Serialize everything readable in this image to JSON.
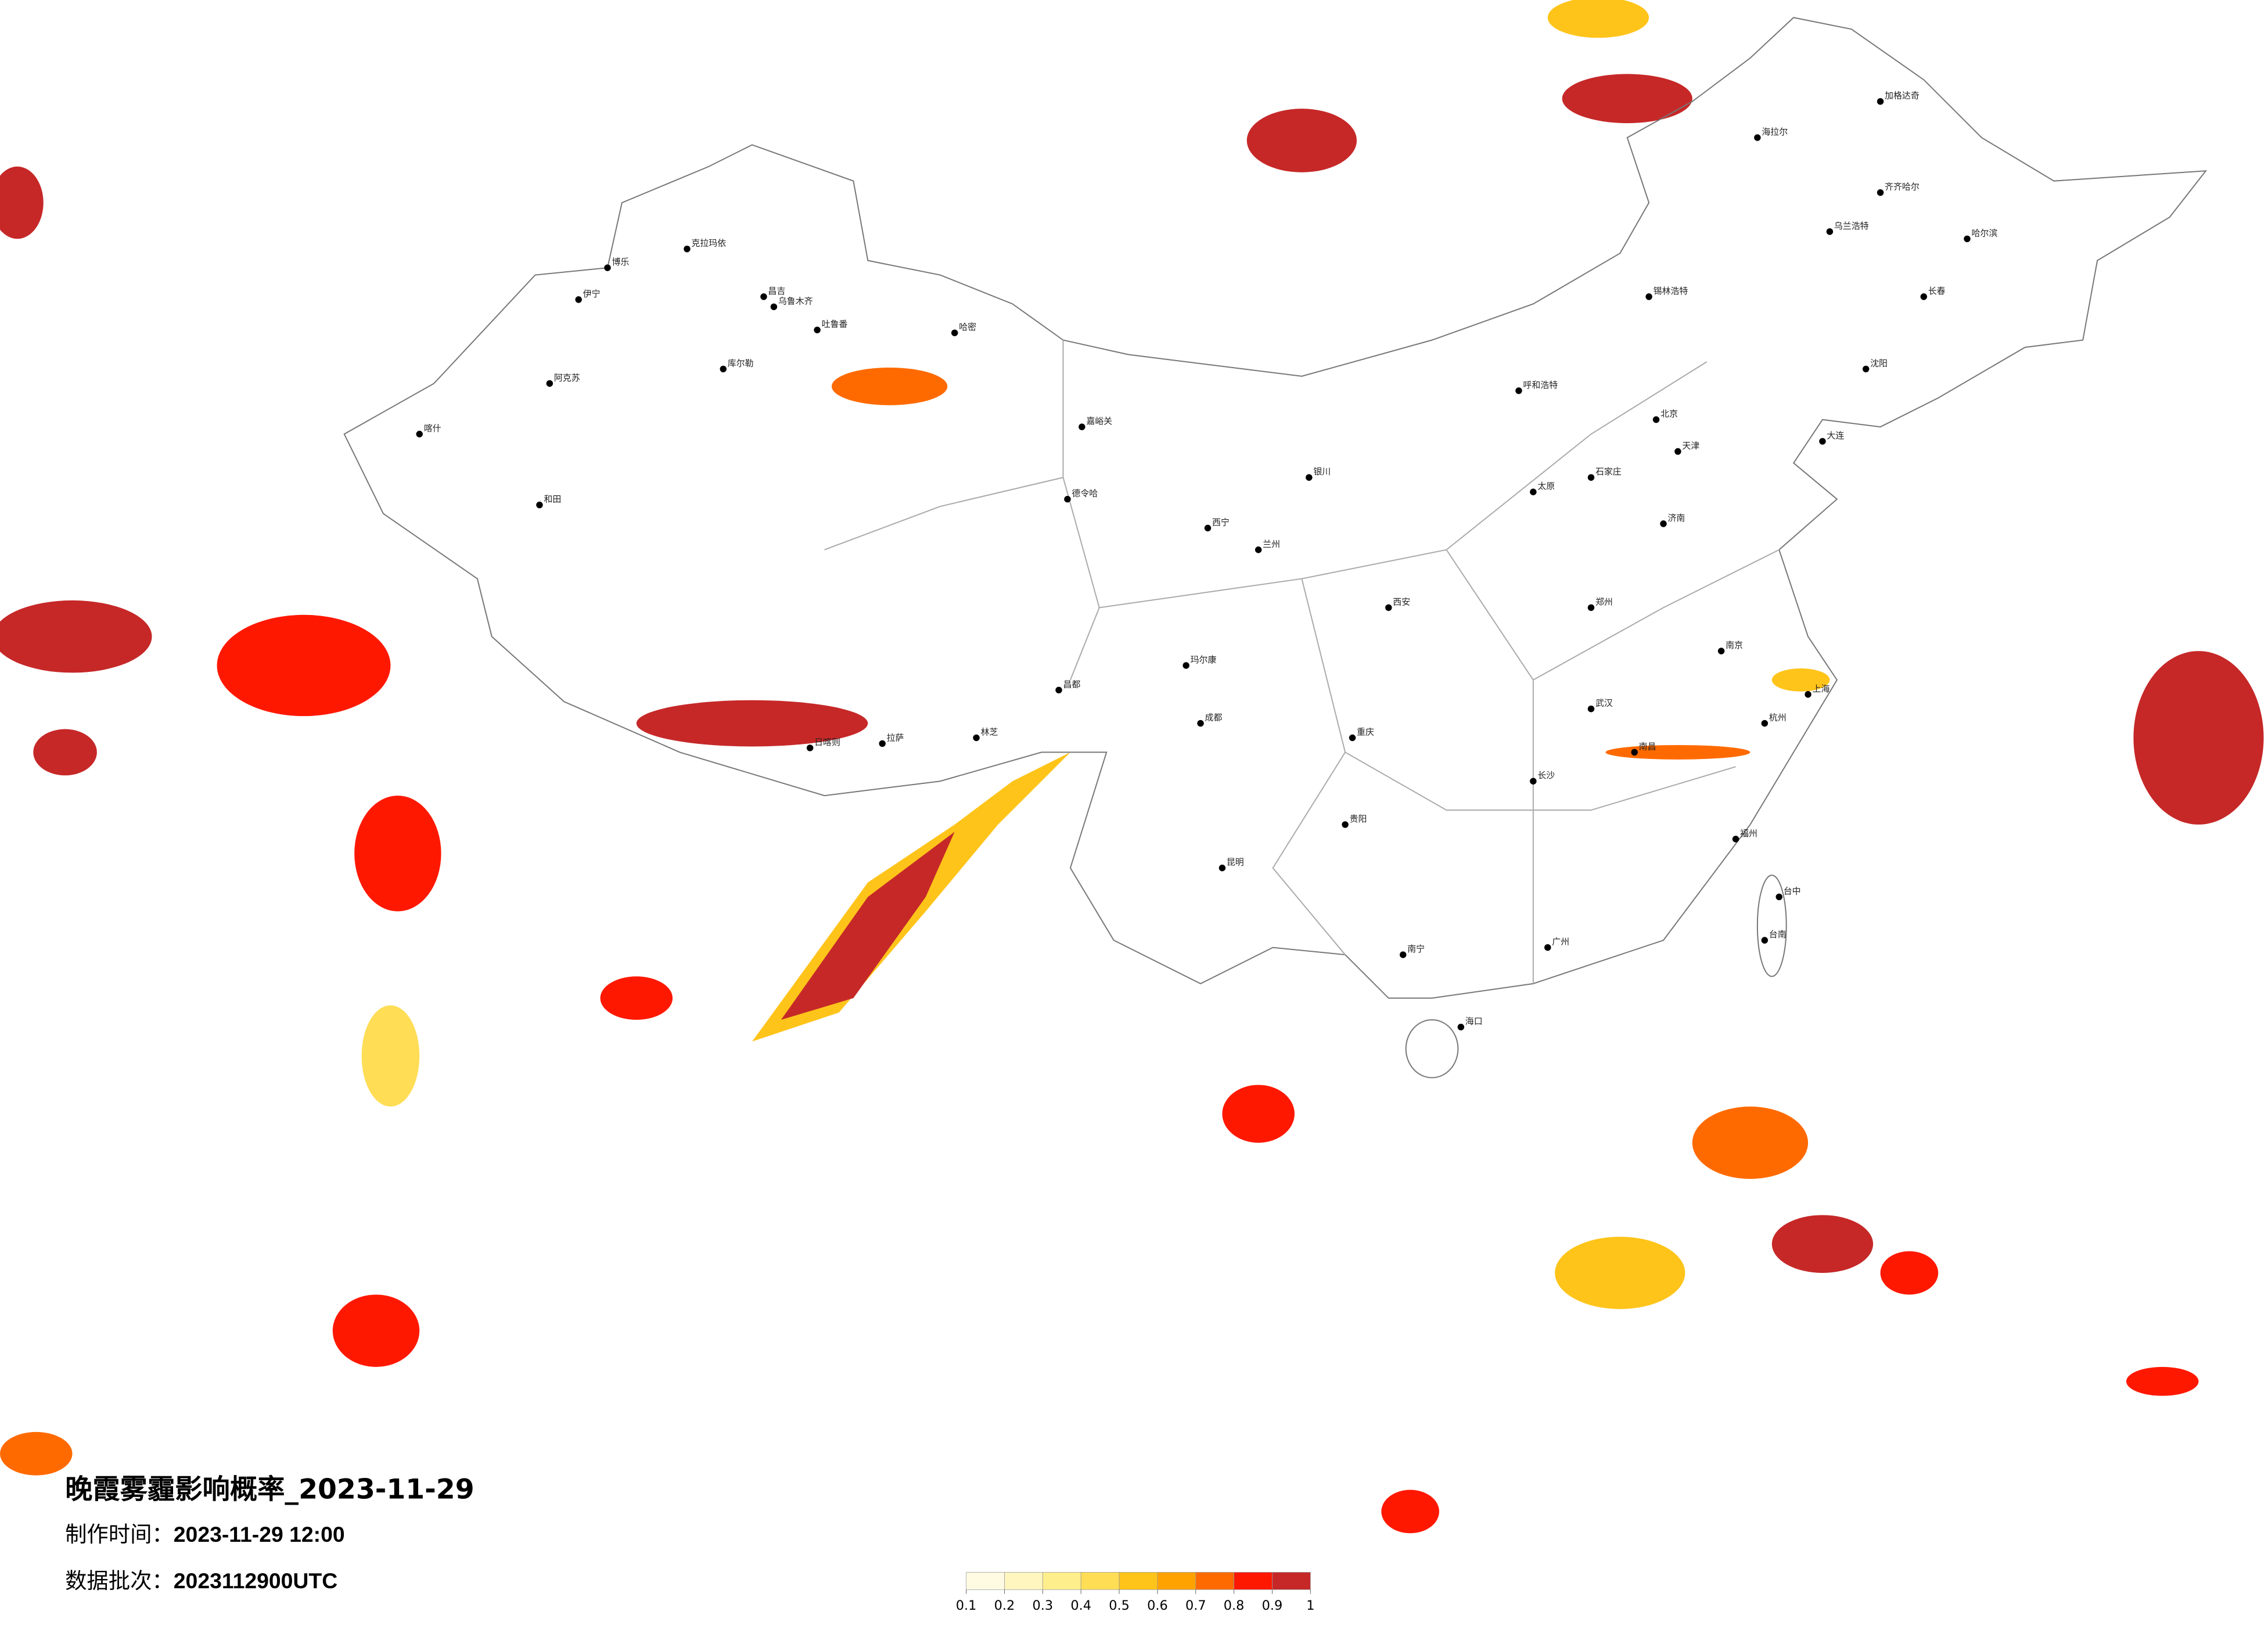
{
  "title": "晚霞雾霾影响概率_2023-11-29",
  "production_time": {
    "label": "制作时间：",
    "value": "2023-11-29 12:00"
  },
  "batch": {
    "label": "数据批次：",
    "value": "2023112900UTC"
  },
  "colorbar": {
    "ticks": [
      0.1,
      0.2,
      0.3,
      0.4,
      0.5,
      0.6,
      0.7,
      0.8,
      0.9,
      1
    ],
    "colors": [
      "#fffbe3",
      "#fff5bf",
      "#ffee8c",
      "#ffdd55",
      "#ffc41a",
      "#ffa200",
      "#ff6a00",
      "#ff1800",
      "#c62828"
    ]
  },
  "cities": [
    "克拉玛依",
    "博乐",
    "伊宁",
    "昌吉",
    "乌鲁木齐",
    "吐鲁番",
    "哈密",
    "库尔勒",
    "阿克苏",
    "喀什",
    "和田",
    "嘉峪关",
    "德令哈",
    "日喀则",
    "拉萨",
    "林芝",
    "昌都",
    "玛尔康",
    "西宁",
    "兰州",
    "银川",
    "呼和浩特",
    "北京",
    "天津",
    "石家庄",
    "太原",
    "济南",
    "郑州",
    "西安",
    "武汉",
    "南京",
    "上海",
    "杭州",
    "长沙",
    "南昌",
    "福州",
    "广州",
    "南宁",
    "海口",
    "昆明",
    "贵阳",
    "重庆",
    "成都",
    "哈尔滨",
    "长春",
    "沈阳",
    "大连",
    "齐齐哈尔",
    "海拉尔",
    "加格达奇",
    "乌兰浩特",
    "锡林浩特",
    "台中",
    "台南"
  ]
}
